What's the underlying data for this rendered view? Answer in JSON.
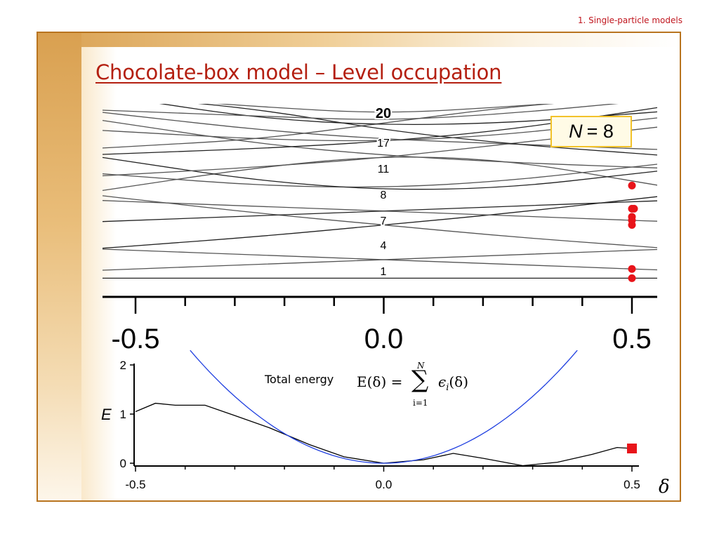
{
  "header": {
    "section": "1. Single-particle models"
  },
  "slide": {
    "title": "Chocolate-box model – Level occupation"
  },
  "badge": {
    "symbol": "N",
    "relation": "= 8"
  },
  "caption": {
    "label": "Total energy"
  },
  "formula": {
    "lhs": "E(δ) =",
    "sum_symbol": "∑",
    "upper": "N",
    "lower": "i=1",
    "rhs": "ϵ",
    "rhs_sub": "i",
    "rhs_arg": "(δ)"
  },
  "colors": {
    "title": "#b41f10",
    "section": "#c0161e",
    "frame": "#b8741f",
    "badge_border": "#f2c22a",
    "occupation": "#e8141a",
    "parabola": "#1f3fe0",
    "curve": "#000000"
  },
  "chart_data": [
    {
      "type": "line",
      "title": "",
      "xlabel": "",
      "ylabel": "",
      "xlim": [
        -0.5,
        0.5
      ],
      "x_ticks": [
        "-0.5",
        "0.0",
        "0.5"
      ],
      "level_labels": [
        {
          "text": "20",
          "bold": true
        },
        {
          "text": "17",
          "bold": false
        },
        {
          "text": "11",
          "bold": false
        },
        {
          "text": "8",
          "bold": false
        },
        {
          "text": "7",
          "bold": false
        },
        {
          "text": "4",
          "bold": false
        },
        {
          "text": "1",
          "bold": false
        }
      ],
      "series": [
        {
          "values": [
            1.2,
            1.2,
            1.2,
            1.2,
            1.2
          ]
        },
        {
          "values": [
            1.6,
            1.8,
            2.0,
            2.2,
            2.4
          ]
        },
        {
          "values": [
            2.4,
            2.2,
            2.0,
            1.8,
            1.6
          ]
        },
        {
          "values": [
            2.6,
            3.0,
            3.5,
            4.0,
            4.6
          ]
        },
        {
          "values": [
            4.6,
            4.0,
            3.5,
            3.0,
            2.6
          ]
        },
        {
          "values": [
            4.5,
            4.3,
            4.1,
            3.9,
            3.7
          ]
        },
        {
          "values": [
            3.7,
            3.9,
            4.1,
            4.3,
            4.5
          ]
        },
        {
          "values": [
            5.2,
            6.0,
            6.5,
            6.3,
            5.4
          ]
        },
        {
          "values": [
            5.6,
            5.2,
            5.1,
            5.4,
            6.0
          ]
        },
        {
          "values": [
            6.2,
            5.4,
            5.0,
            5.1,
            5.7
          ]
        },
        {
          "values": [
            5.7,
            6.0,
            6.4,
            7.0,
            7.6
          ]
        },
        {
          "values": [
            7.8,
            7.0,
            6.5,
            6.2,
            6.0
          ]
        },
        {
          "values": [
            6.6,
            6.8,
            7.1,
            7.6,
            8.4
          ]
        },
        {
          "values": [
            8.2,
            7.6,
            7.2,
            7.0,
            6.8
          ]
        },
        {
          "values": [
            6.9,
            7.2,
            7.9,
            8.6,
            9.0
          ]
        },
        {
          "values": [
            9.0,
            8.5,
            7.6,
            7.0,
            6.6
          ]
        },
        {
          "values": [
            7.5,
            7.2,
            7.1,
            7.4,
            8.0
          ]
        },
        {
          "values": [
            9.0,
            8.6,
            8.3,
            8.6,
            9.0
          ]
        },
        {
          "values": [
            8.9,
            8.1,
            7.8,
            7.9,
            8.3
          ]
        },
        {
          "values": [
            8.4,
            8.2,
            8.0,
            8.3,
            8.8
          ]
        }
      ],
      "occupied_points": [
        {
          "x": 0.5,
          "y": 1.2
        },
        {
          "x": 0.5,
          "y": 1.6
        },
        {
          "x": 0.5,
          "y": 3.5
        },
        {
          "x": 0.5,
          "y": 3.7
        },
        {
          "x": 0.5,
          "y": 3.85
        },
        {
          "x": 0.5,
          "y": 4.2
        },
        {
          "x": 0.5,
          "y": 4.2
        },
        {
          "x": 0.5,
          "y": 5.2
        }
      ]
    },
    {
      "type": "line",
      "title": "",
      "xlabel": "δ",
      "ylabel": "E",
      "xlim": [
        -0.5,
        0.5
      ],
      "ylim": [
        0,
        2
      ],
      "x_ticks": [
        "-0.5",
        "0.0",
        "0.5"
      ],
      "y_ticks": [
        "0",
        "1",
        "2"
      ],
      "series": [
        {
          "x": [
            -0.5,
            -0.46,
            -0.42,
            -0.38,
            -0.36,
            -0.3,
            -0.23,
            -0.15,
            -0.08,
            0.0,
            0.08,
            0.14,
            0.2,
            0.28,
            0.35,
            0.42,
            0.47,
            0.5
          ],
          "values": [
            1.05,
            1.22,
            1.18,
            1.18,
            1.18,
            0.97,
            0.72,
            0.38,
            0.13,
            0.0,
            0.07,
            0.2,
            0.1,
            -0.05,
            0.02,
            0.18,
            0.32,
            0.3
          ]
        },
        {
          "x": [
            -0.39,
            -0.3,
            -0.2,
            -0.1,
            0.0,
            0.1,
            0.2,
            0.3,
            0.39
          ],
          "values": [
            2.3,
            1.36,
            0.61,
            0.15,
            0.0,
            0.15,
            0.61,
            1.36,
            2.3
          ]
        }
      ],
      "marker": {
        "x": 0.5,
        "y": 0.3
      }
    }
  ]
}
